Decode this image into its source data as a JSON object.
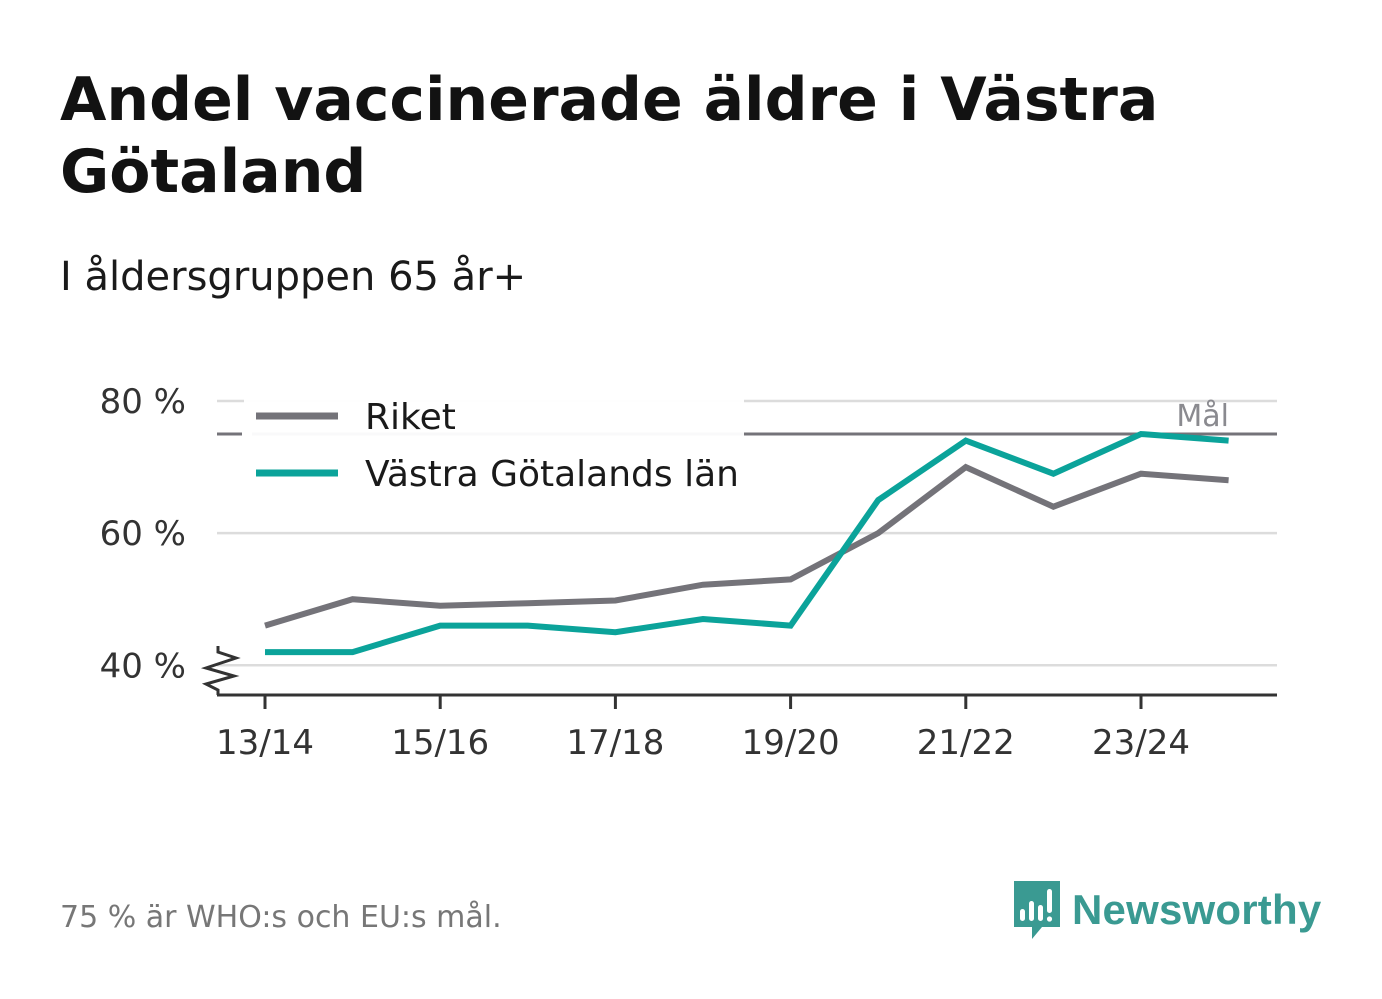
{
  "title": "Andel vaccinerade äldre i Västra Götaland",
  "subtitle": "I åldersgruppen 65 år+",
  "footnote": "75 % är WHO:s och EU:s mål.",
  "brand": "Newsworthy",
  "colors": {
    "riket": "#747379",
    "vg": "#0ba39a",
    "grid": "#dcdcdc",
    "axis": "#333333",
    "goal": "#747379",
    "brand": "#3a9a92"
  },
  "chart_data": {
    "type": "line",
    "title": "Andel vaccinerade äldre i Västra Götaland",
    "subtitle": "I åldersgruppen 65 år+",
    "xlabel": "",
    "ylabel": "",
    "x": [
      "13/14",
      "14/15",
      "15/16",
      "16/17",
      "17/18",
      "18/19",
      "19/20",
      "20/21",
      "21/22",
      "22/23",
      "23/24",
      "24/25"
    ],
    "x_tick_labels": [
      "13/14",
      "15/16",
      "17/18",
      "19/20",
      "21/22",
      "23/24"
    ],
    "y_ticks": [
      40,
      60,
      80
    ],
    "y_tick_labels": [
      "40 %",
      "60 %",
      "80 %"
    ],
    "ylim": [
      35.5,
      80
    ],
    "y_axis_break": true,
    "grid": true,
    "legend_position": "top-left",
    "goal_line": {
      "value": 75,
      "label": "Mål"
    },
    "series": [
      {
        "name": "Riket",
        "color": "#747379",
        "values": [
          46,
          50,
          49,
          49.4,
          49.8,
          52.2,
          53,
          60,
          70,
          64,
          69,
          68
        ]
      },
      {
        "name": "Västra Götalands län",
        "color": "#0ba39a",
        "values": [
          42,
          42,
          46,
          46,
          45,
          47,
          46,
          65,
          74,
          69,
          75,
          74
        ]
      }
    ]
  }
}
